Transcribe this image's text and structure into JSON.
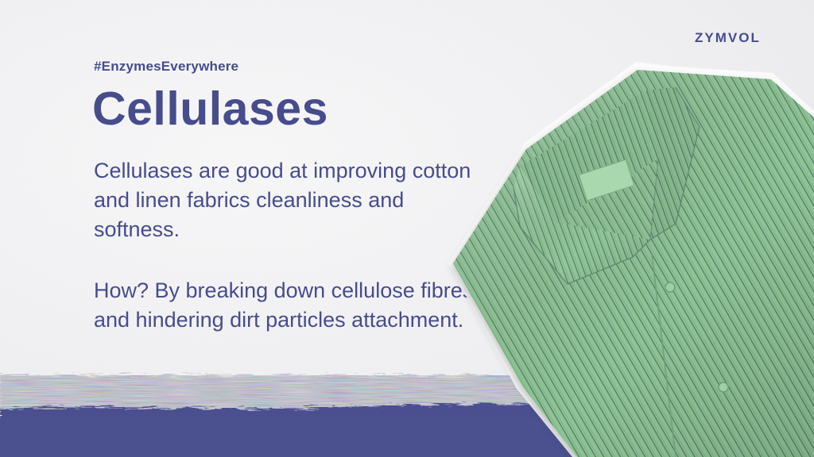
{
  "hashtag": "#EnzymesEverywhere",
  "title": "Cellulases",
  "paragraph_1": "Cellulases are good at improving cotton and linen fabrics cleanliness and softness.",
  "paragraph_2": "How? By breaking down cellulose fibres and hindering dirt particles attachment.",
  "brand": "ZYMVOL",
  "colors": {
    "brand": "#474c8c",
    "band": "#4b508f",
    "shirt_green": "#8fc596",
    "stripe": "#4f6d61",
    "background": "#f1f1f2"
  },
  "images": {
    "shirt": "folded-green-striped-shirt"
  }
}
